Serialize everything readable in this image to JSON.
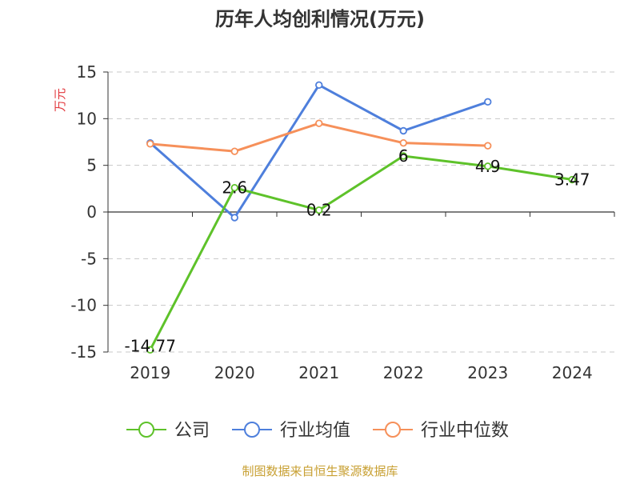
{
  "chart_data": {
    "type": "line",
    "title": "历年人均创利情况(万元)",
    "xlabel": "",
    "ylabel": "万元",
    "categories": [
      "2019",
      "2020",
      "2021",
      "2022",
      "2023",
      "2024"
    ],
    "ylim": [
      -15,
      15
    ],
    "yticks": [
      15,
      10,
      5,
      0,
      -5,
      -10,
      -15
    ],
    "grid": true,
    "legend_position": "bottom",
    "series": [
      {
        "name": "公司",
        "color": "#5ec22a",
        "values": [
          -14.77,
          2.6,
          0.2,
          6,
          4.9,
          3.47
        ],
        "labels": [
          "-14.77",
          "2.6",
          "0.2",
          "6",
          "4.9",
          "3.47"
        ]
      },
      {
        "name": "行业均值",
        "color": "#4e7fdc",
        "values": [
          7.4,
          -0.6,
          13.6,
          8.7,
          11.8,
          null
        ]
      },
      {
        "name": "行业中位数",
        "color": "#f6905a",
        "values": [
          7.3,
          6.5,
          9.5,
          7.4,
          7.1,
          null
        ]
      }
    ],
    "source": "制图数据来自恒生聚源数据库"
  }
}
